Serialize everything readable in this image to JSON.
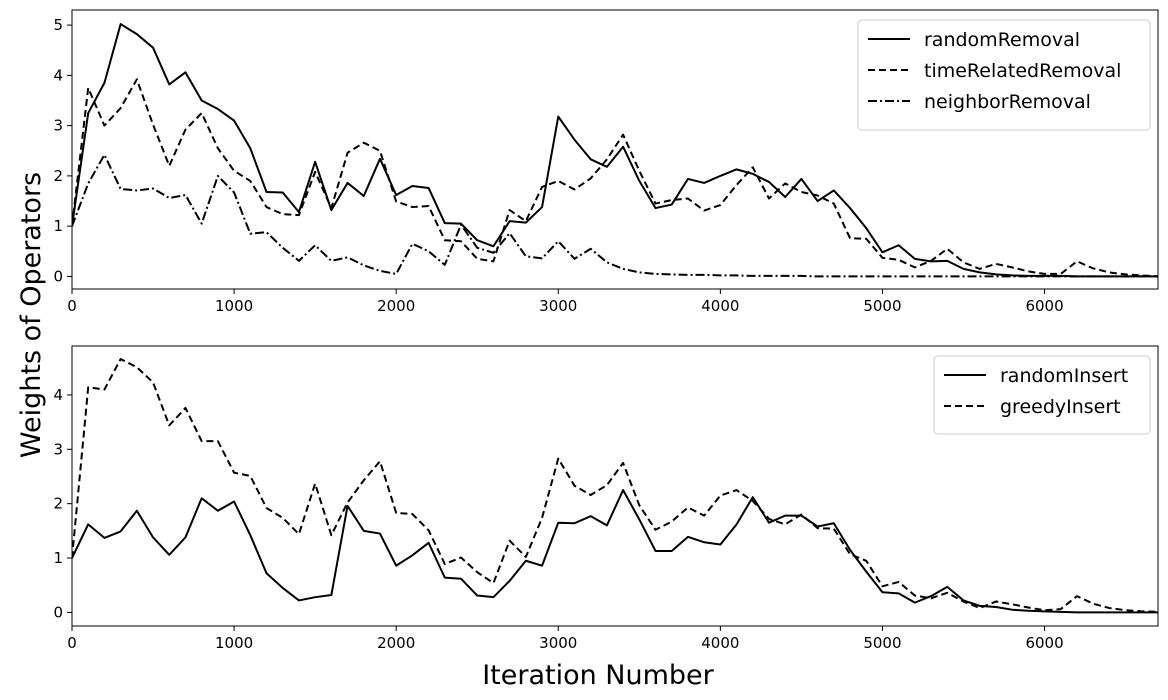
{
  "figure": {
    "ylabel": "Weights of Operators",
    "xlabel": "Iteration Number"
  },
  "chart_data": [
    {
      "type": "line",
      "xlim": [
        0,
        6700
      ],
      "ylim": [
        -0.25,
        5.3
      ],
      "xticks": [
        0,
        1000,
        2000,
        3000,
        4000,
        5000,
        6000
      ],
      "yticks": [
        0,
        1,
        2,
        3,
        4,
        5
      ],
      "grid": false,
      "legend": "top-right",
      "x": [
        0,
        100,
        200,
        300,
        400,
        500,
        600,
        700,
        800,
        900,
        1000,
        1100,
        1200,
        1300,
        1400,
        1500,
        1600,
        1700,
        1800,
        1900,
        2000,
        2100,
        2200,
        2300,
        2400,
        2500,
        2600,
        2700,
        2800,
        2900,
        3000,
        3100,
        3200,
        3300,
        3400,
        3500,
        3600,
        3700,
        3800,
        3900,
        4000,
        4100,
        4200,
        4300,
        4400,
        4500,
        4600,
        4700,
        4800,
        4900,
        5000,
        5100,
        5200,
        5300,
        5400,
        5500,
        5600,
        5700,
        5800,
        5900,
        6000,
        6100,
        6200,
        6300,
        6400,
        6500,
        6600,
        6700
      ],
      "series": [
        {
          "name": "randomRemoval",
          "style": "solid",
          "values": [
            1.0,
            3.25,
            3.85,
            5.02,
            4.82,
            4.55,
            3.82,
            4.06,
            3.5,
            3.33,
            3.1,
            2.55,
            1.68,
            1.67,
            1.28,
            2.28,
            1.32,
            1.86,
            1.6,
            2.34,
            1.62,
            1.8,
            1.76,
            1.06,
            1.05,
            0.72,
            0.6,
            1.1,
            1.07,
            1.38,
            3.18,
            2.72,
            2.33,
            2.18,
            2.58,
            1.9,
            1.36,
            1.43,
            1.94,
            1.86,
            2.0,
            2.13,
            2.04,
            1.88,
            1.58,
            1.94,
            1.5,
            1.71,
            1.36,
            0.96,
            0.48,
            0.62,
            0.35,
            0.3,
            0.31,
            0.15,
            0.08,
            0.04,
            0.02,
            0.01,
            0.01,
            0.01,
            0.0,
            0.0,
            0.0,
            0.0,
            0.0,
            0.0
          ]
        },
        {
          "name": "timeRelatedRemoval",
          "style": "dashed",
          "values": [
            1.0,
            3.75,
            3.0,
            3.35,
            3.92,
            3.02,
            2.2,
            2.92,
            3.25,
            2.55,
            2.1,
            1.9,
            1.38,
            1.24,
            1.22,
            2.08,
            1.36,
            2.46,
            2.66,
            2.5,
            1.49,
            1.38,
            1.4,
            0.72,
            0.7,
            0.35,
            0.3,
            1.32,
            1.1,
            1.78,
            1.9,
            1.73,
            1.95,
            2.33,
            2.82,
            2.1,
            1.45,
            1.52,
            1.55,
            1.31,
            1.42,
            1.82,
            2.17,
            1.55,
            1.85,
            1.68,
            1.61,
            1.45,
            0.76,
            0.75,
            0.37,
            0.33,
            0.18,
            0.31,
            0.55,
            0.28,
            0.15,
            0.25,
            0.18,
            0.1,
            0.05,
            0.05,
            0.3,
            0.16,
            0.08,
            0.04,
            0.02,
            0.0
          ]
        },
        {
          "name": "neighborRemoval",
          "style": "dashdot",
          "values": [
            1.0,
            1.85,
            2.42,
            1.74,
            1.71,
            1.75,
            1.56,
            1.62,
            1.05,
            2.0,
            1.67,
            0.85,
            0.88,
            0.57,
            0.31,
            0.62,
            0.31,
            0.38,
            0.22,
            0.11,
            0.05,
            0.65,
            0.5,
            0.23,
            1.03,
            0.57,
            0.47,
            0.86,
            0.4,
            0.36,
            0.7,
            0.35,
            0.55,
            0.28,
            0.15,
            0.08,
            0.05,
            0.04,
            0.03,
            0.03,
            0.02,
            0.02,
            0.01,
            0.01,
            0.01,
            0.01,
            0.0,
            0.0,
            0.0,
            0.0,
            0.0,
            0.0,
            0.0,
            0.0,
            0.0,
            0.0,
            0.0,
            0.0,
            0.0,
            0.0,
            0.0,
            0.0,
            0.0,
            0.0,
            0.0,
            0.0,
            0.0,
            0.0
          ]
        }
      ]
    },
    {
      "type": "line",
      "xlim": [
        0,
        6700
      ],
      "ylim": [
        -0.25,
        4.9
      ],
      "xticks": [
        0,
        1000,
        2000,
        3000,
        4000,
        5000,
        6000
      ],
      "yticks": [
        0,
        1,
        2,
        3,
        4
      ],
      "grid": false,
      "legend": "top-right",
      "x": [
        0,
        100,
        200,
        300,
        400,
        500,
        600,
        700,
        800,
        900,
        1000,
        1100,
        1200,
        1300,
        1400,
        1500,
        1600,
        1700,
        1800,
        1900,
        2000,
        2100,
        2200,
        2300,
        2400,
        2500,
        2600,
        2700,
        2800,
        2900,
        3000,
        3100,
        3200,
        3300,
        3400,
        3500,
        3600,
        3700,
        3800,
        3900,
        4000,
        4100,
        4200,
        4300,
        4400,
        4500,
        4600,
        4700,
        4800,
        4900,
        5000,
        5100,
        5200,
        5300,
        5400,
        5500,
        5600,
        5700,
        5800,
        5900,
        6000,
        6100,
        6200,
        6300,
        6400,
        6500,
        6600,
        6700
      ],
      "series": [
        {
          "name": "randomInsert",
          "style": "solid",
          "values": [
            1.0,
            1.62,
            1.37,
            1.49,
            1.87,
            1.38,
            1.06,
            1.38,
            2.1,
            1.87,
            2.04,
            1.42,
            0.72,
            0.45,
            0.22,
            0.28,
            0.32,
            1.96,
            1.5,
            1.45,
            0.86,
            1.05,
            1.28,
            0.64,
            0.62,
            0.31,
            0.28,
            0.58,
            0.95,
            0.86,
            1.65,
            1.64,
            1.77,
            1.6,
            2.25,
            1.71,
            1.13,
            1.13,
            1.39,
            1.29,
            1.25,
            1.62,
            2.12,
            1.65,
            1.78,
            1.78,
            1.58,
            1.64,
            1.15,
            0.75,
            0.37,
            0.35,
            0.18,
            0.3,
            0.47,
            0.22,
            0.12,
            0.1,
            0.05,
            0.03,
            0.02,
            0.01,
            0.0,
            0.0,
            0.0,
            0.0,
            0.0,
            0.0
          ]
        },
        {
          "name": "greedyInsert",
          "style": "dashed",
          "values": [
            1.0,
            4.14,
            4.1,
            4.66,
            4.51,
            4.23,
            3.44,
            3.76,
            3.15,
            3.15,
            2.57,
            2.51,
            1.92,
            1.74,
            1.44,
            2.37,
            1.42,
            2.02,
            2.43,
            2.78,
            1.83,
            1.81,
            1.51,
            0.89,
            1.01,
            0.74,
            0.54,
            1.32,
            1.02,
            1.74,
            2.83,
            2.33,
            2.16,
            2.34,
            2.75,
            1.97,
            1.52,
            1.67,
            1.93,
            1.78,
            2.15,
            2.25,
            2.05,
            1.72,
            1.62,
            1.8,
            1.55,
            1.54,
            1.07,
            0.95,
            0.48,
            0.56,
            0.31,
            0.26,
            0.36,
            0.2,
            0.08,
            0.2,
            0.15,
            0.09,
            0.04,
            0.06,
            0.3,
            0.16,
            0.08,
            0.04,
            0.02,
            0.01
          ]
        }
      ]
    }
  ]
}
